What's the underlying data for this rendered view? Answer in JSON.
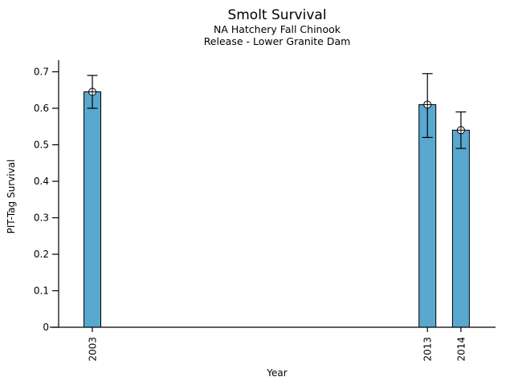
{
  "chart_data": {
    "type": "bar",
    "title": "Smolt Survival",
    "subtitle1": "NA Hatchery Fall Chinook",
    "subtitle2": "Release - Lower Granite Dam",
    "xlabel": "Year",
    "ylabel": "PIT-Tag Survival",
    "categories": [
      2003,
      2013,
      2014
    ],
    "x_tick_labels": [
      "2003",
      "2013",
      "2014"
    ],
    "values": [
      0.645,
      0.61,
      0.54
    ],
    "error_low": [
      0.6,
      0.52,
      0.49
    ],
    "error_high": [
      0.69,
      0.695,
      0.59
    ],
    "yticks": [
      0,
      0.1,
      0.2,
      0.3,
      0.4,
      0.5,
      0.6,
      0.7
    ],
    "ytick_labels": [
      "0",
      "0.1",
      "0.2",
      "0.3",
      "0.4",
      "0.5",
      "0.6",
      "0.7"
    ],
    "xlim": [
      2001.7,
      2015.1
    ],
    "ylim": [
      0,
      0.7
    ],
    "grid": false,
    "legend": "none",
    "marker": "circle-plus",
    "bar_color": "#58A8CF",
    "bar_edge_color": "#000000",
    "error_bar_color": "#000000",
    "axis_color": "#000000",
    "background_color": "#ffffff"
  }
}
